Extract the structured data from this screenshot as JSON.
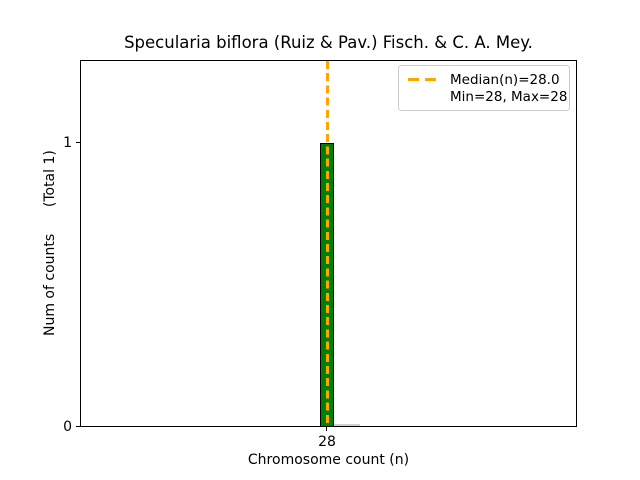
{
  "chart_data": {
    "type": "bar",
    "title": "Specularia biflora (Ruiz & Pav.) Fisch. & C. A. Mey.",
    "xlabel": "Chromosome count (n)",
    "ylabel": "Num of counts      (Total 1)",
    "categories": [
      28
    ],
    "values": [
      1
    ],
    "total_counts": 1,
    "median_n": 28.0,
    "min_n": 28,
    "max_n": 28,
    "xtick_labels": [
      "28"
    ],
    "ytick_labels": [
      "0",
      "1"
    ],
    "ylim": [
      0,
      1.29
    ],
    "grid": false,
    "legend": {
      "position": "upper right",
      "entries": [
        "Median(n)=28.0",
        "Min=28, Max=28"
      ]
    },
    "colors": {
      "bar_fill": "#008000",
      "bar_edge": "#000000",
      "median_line": "#FFA500",
      "zero_height_bin": "#d0d0d0",
      "legend_border": "#cccccc",
      "background": "#ffffff"
    }
  }
}
